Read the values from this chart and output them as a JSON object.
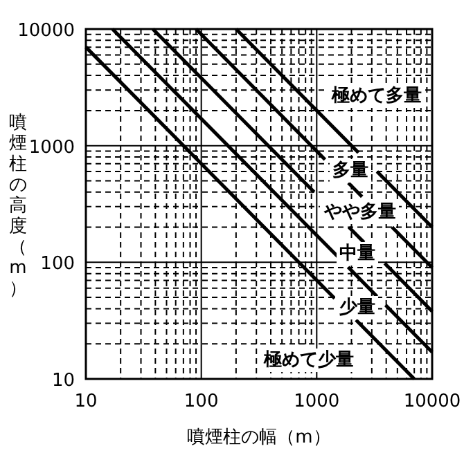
{
  "chart_data": {
    "type": "line",
    "xlabel": "噴煙柱の幅（m）",
    "ylabel": "噴煙柱の高度（m）",
    "xlim": [
      10,
      10000
    ],
    "ylim": [
      10,
      10000
    ],
    "xticks": [
      10,
      100,
      1000,
      10000
    ],
    "yticks": [
      10,
      100,
      1000,
      10000
    ],
    "log": "xy",
    "grid": true,
    "marker": "none",
    "line_style": "solid",
    "series": [
      {
        "color": "#000000",
        "x": [
          10,
          1430
        ],
        "values": [
          7000,
          49
        ]
      },
      {
        "color": "#000000",
        "x": [
          2190,
          7000
        ],
        "values": [
          32,
          10
        ]
      },
      {
        "color": "#000000",
        "x": [
          17,
          1520
        ],
        "values": [
          10000,
          112
        ]
      },
      {
        "color": "#000000",
        "x": [
          1870,
          3330
        ],
        "values": [
          91,
          51
        ]
      },
      {
        "color": "#000000",
        "x": [
          3950,
          10000
        ],
        "values": [
          43,
          17
        ]
      },
      {
        "color": "#000000",
        "x": [
          38,
          950
        ],
        "values": [
          10000,
          400
        ]
      },
      {
        "color": "#000000",
        "x": [
          1900,
          2570
        ],
        "values": [
          200,
          148
        ]
      },
      {
        "color": "#000000",
        "x": [
          3880,
          10000
        ],
        "values": [
          98,
          38
        ]
      },
      {
        "color": "#000000",
        "x": [
          90,
          1180
        ],
        "values": [
          10000,
          760
        ]
      },
      {
        "color": "#000000",
        "x": [
          1880,
          2470
        ],
        "values": [
          480,
          365
        ]
      },
      {
        "color": "#000000",
        "x": [
          4500,
          10000
        ],
        "values": [
          200,
          90
        ]
      },
      {
        "color": "#000000",
        "x": [
          200,
          2300
        ],
        "values": [
          10000,
          870
        ]
      },
      {
        "color": "#000000",
        "x": [
          3330,
          10000
        ],
        "values": [
          600,
          200
        ]
      }
    ],
    "annotations": [
      "極めて多量",
      "多量",
      "やや多量",
      "中量",
      "少量",
      "極めて少量"
    ]
  }
}
